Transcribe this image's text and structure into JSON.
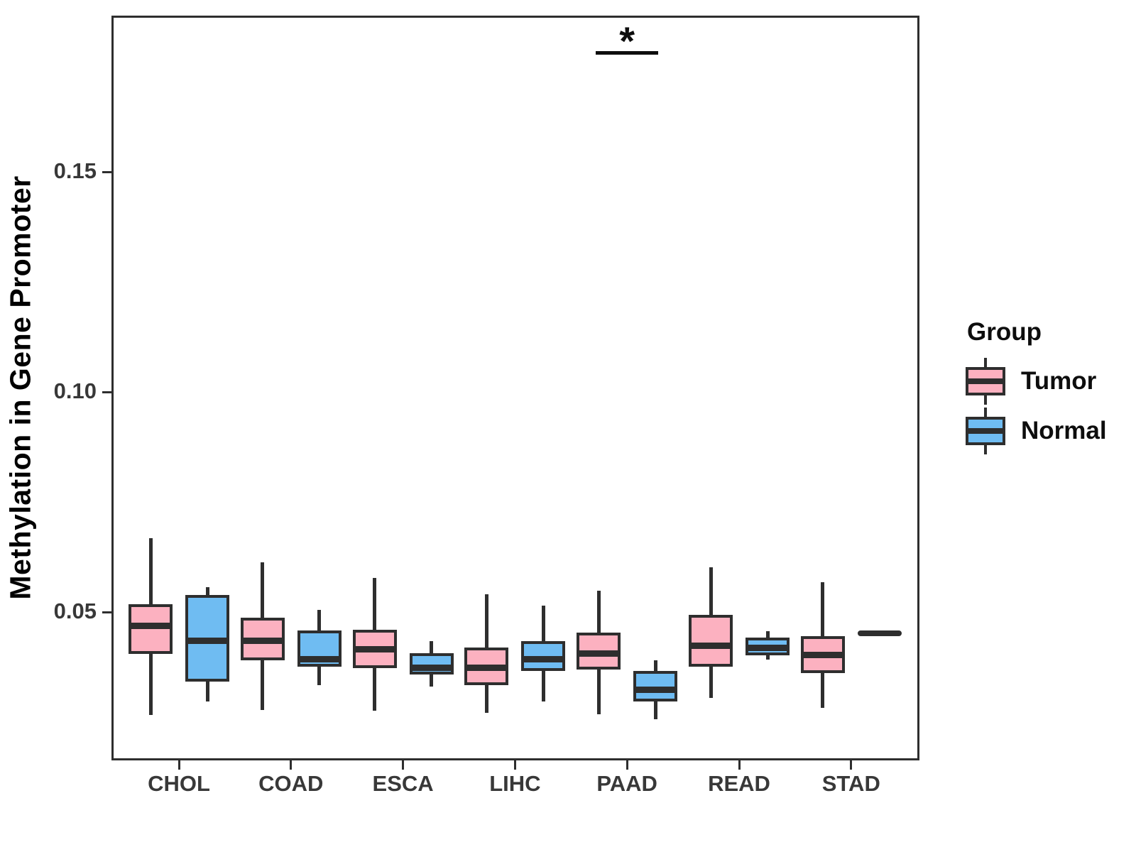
{
  "chart_data": {
    "type": "boxplot",
    "title": "",
    "xlabel": "",
    "ylabel": "Methylation in Gene Promoter",
    "categories": [
      "CHOL",
      "COAD",
      "ESCA",
      "LIHC",
      "PAAD",
      "READ",
      "STAD"
    ],
    "y_axis": {
      "ticks": [
        {
          "label": "0.05",
          "value": 0.05
        },
        {
          "label": "0.10",
          "value": 0.1
        },
        {
          "label": "0.15",
          "value": 0.15
        }
      ],
      "ylim": [
        0.016,
        0.186
      ],
      "grid": false,
      "panel_border": true
    },
    "legend": {
      "title": "Group",
      "position": "right",
      "entries": [
        {
          "label": "Tumor",
          "color": "#fcb1c0"
        },
        {
          "label": "Normal",
          "color": "#6fbcf2"
        }
      ]
    },
    "outline_color": "#2e2e2e",
    "series": [
      {
        "name": "Tumor",
        "color": "#fcb1c0",
        "boxes": [
          {
            "category": "CHOL",
            "low": 0.0266,
            "q1": 0.0405,
            "median": 0.0468,
            "q3": 0.0518,
            "high": 0.0668
          },
          {
            "category": "COAD",
            "low": 0.0277,
            "q1": 0.039,
            "median": 0.0435,
            "q3": 0.0487,
            "high": 0.0613
          },
          {
            "category": "ESCA",
            "low": 0.0276,
            "q1": 0.0373,
            "median": 0.0415,
            "q3": 0.046,
            "high": 0.0577
          },
          {
            "category": "LIHC",
            "low": 0.0271,
            "q1": 0.0334,
            "median": 0.0373,
            "q3": 0.0419,
            "high": 0.054
          },
          {
            "category": "PAAD",
            "low": 0.0268,
            "q1": 0.0369,
            "median": 0.0406,
            "q3": 0.0453,
            "high": 0.0548
          },
          {
            "category": "READ",
            "low": 0.0305,
            "q1": 0.0376,
            "median": 0.0424,
            "q3": 0.0494,
            "high": 0.0602
          },
          {
            "category": "STAD",
            "low": 0.0282,
            "q1": 0.0361,
            "median": 0.0402,
            "q3": 0.0445,
            "high": 0.0568
          }
        ]
      },
      {
        "name": "Normal",
        "color": "#6fbcf2",
        "boxes": [
          {
            "category": "CHOL",
            "low": 0.0297,
            "q1": 0.0342,
            "median": 0.0434,
            "q3": 0.0539,
            "high": 0.0556
          },
          {
            "category": "COAD",
            "low": 0.0334,
            "q1": 0.0376,
            "median": 0.0393,
            "q3": 0.0458,
            "high": 0.0505
          },
          {
            "category": "ESCA",
            "low": 0.0331,
            "q1": 0.0358,
            "median": 0.0373,
            "q3": 0.0406,
            "high": 0.0434
          },
          {
            "category": "LIHC",
            "low": 0.0297,
            "q1": 0.0366,
            "median": 0.0392,
            "q3": 0.0434,
            "high": 0.0515
          },
          {
            "category": "PAAD",
            "low": 0.0256,
            "q1": 0.0297,
            "median": 0.0324,
            "q3": 0.0366,
            "high": 0.039
          },
          {
            "category": "READ",
            "low": 0.0392,
            "q1": 0.0402,
            "median": 0.0419,
            "q3": 0.0442,
            "high": 0.0456
          },
          {
            "category": "STAD",
            "low": 0.0452,
            "q1": 0.0452,
            "median": 0.0452,
            "q3": 0.0452,
            "high": 0.0452
          }
        ]
      }
    ],
    "annotations": [
      {
        "type": "significance",
        "label": "*",
        "category": "PAAD"
      }
    ]
  }
}
